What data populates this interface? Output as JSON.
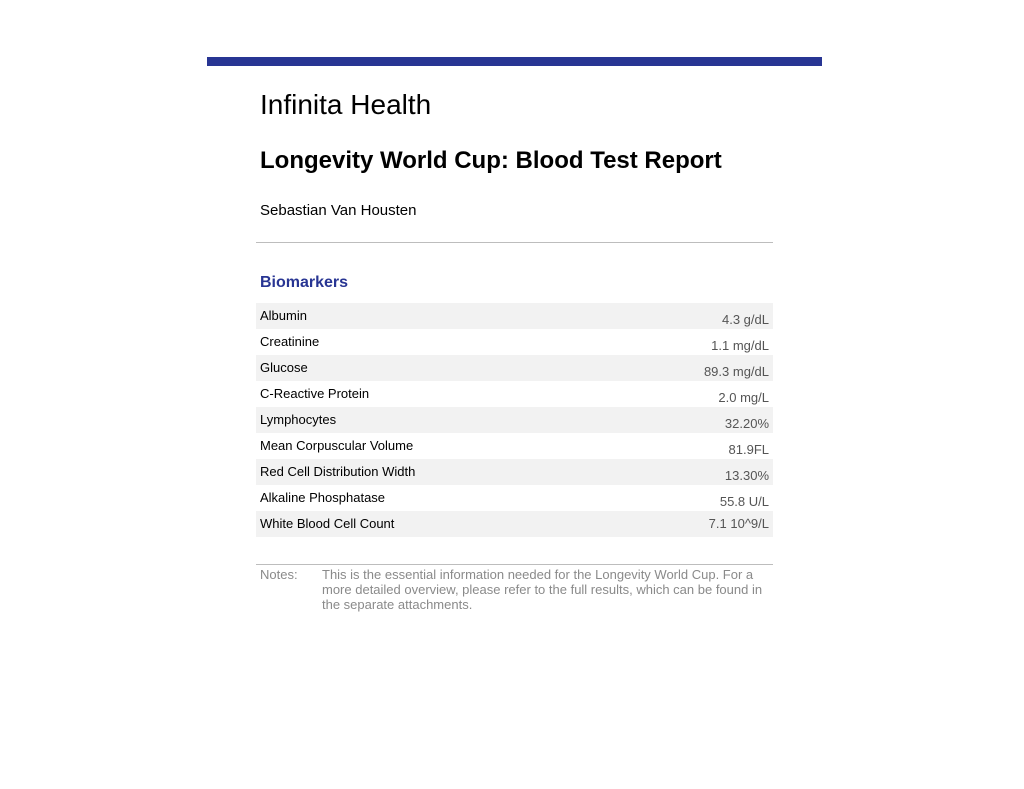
{
  "colors": {
    "accent": "#283593",
    "row_shade": "#f2f2f2",
    "muted_text": "#8a8a8a"
  },
  "header": {
    "organization": "Infinita Health",
    "title": "Longevity World Cup: Blood Test Report",
    "patient_name": "Sebastian Van Housten"
  },
  "biomarkers": {
    "heading": "Biomarkers",
    "rows": [
      {
        "name": "Albumin",
        "value": "4.3 g/dL"
      },
      {
        "name": "Creatinine",
        "value": "1.1 mg/dL"
      },
      {
        "name": "Glucose",
        "value": "89.3 mg/dL"
      },
      {
        "name": "C-Reactive Protein",
        "value": "2.0 mg/L"
      },
      {
        "name": "Lymphocytes",
        "value": "32.20%"
      },
      {
        "name": "Mean Corpuscular Volume",
        "value": "81.9FL"
      },
      {
        "name": "Red Cell Distribution Width",
        "value": "13.30%"
      },
      {
        "name": "Alkaline Phosphatase",
        "value": "55.8 U/L"
      },
      {
        "name": "White Blood Cell Count",
        "value": "7.1 10^9/L"
      }
    ]
  },
  "notes": {
    "label": "Notes:",
    "text": "This is the essential information needed for the Longevity World Cup. For a more detailed overview, please refer to the full results, which can be found in the separate attachments."
  }
}
